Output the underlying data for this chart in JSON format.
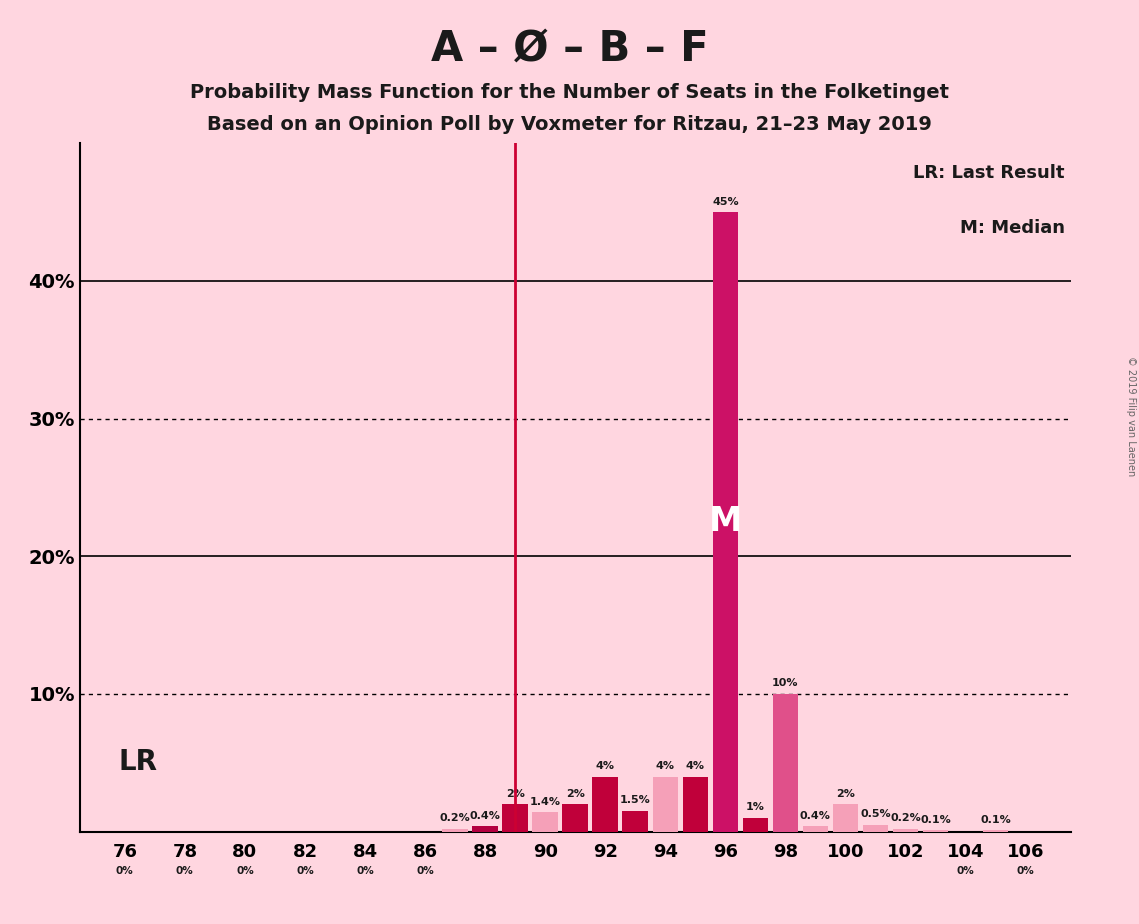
{
  "title_main": "A – Ø – B – F",
  "subtitle1": "Probability Mass Function for the Number of Seats in the Folketinget",
  "subtitle2": "Based on an Opinion Poll by Voxmeter for Ritzau, 21–23 May 2019",
  "copyright": "© 2019 Filip van Laenen",
  "seats": [
    76,
    78,
    80,
    82,
    84,
    86,
    87,
    88,
    89,
    90,
    91,
    92,
    93,
    94,
    95,
    96,
    97,
    98,
    99,
    100,
    101,
    102,
    103,
    104,
    105,
    106
  ],
  "probabilities": [
    0.0,
    0.0,
    0.0,
    0.0,
    0.0,
    0.0,
    0.2,
    0.4,
    2.0,
    1.4,
    2.0,
    4.0,
    1.5,
    4.0,
    4.0,
    45.0,
    1.0,
    10.0,
    0.4,
    2.0,
    0.5,
    0.2,
    0.1,
    0.0,
    0.1,
    0.0
  ],
  "bar_colors": [
    "#f4a0b5",
    "#f4a0b5",
    "#f4a0b5",
    "#f4a0b5",
    "#f4a0b5",
    "#f4a0b5",
    "#f4a0b5",
    "#cc0044",
    "#cc0044",
    "#f4a0b5",
    "#cc0044",
    "#cc0044",
    "#cc0044",
    "#f08098",
    "#cc0044",
    "#cc0044",
    "#cc0044",
    "#e8609a",
    "#f4a0b5",
    "#f4a0b5",
    "#f08098",
    "#f4a0b5",
    "#f4a0b5",
    "#f4a0b5",
    "#f4a0b5",
    "#f4a0b5"
  ],
  "lr_seat": 89,
  "median_seat": 96,
  "background_color": "#ffd6e0",
  "ylim": [
    0,
    50
  ],
  "legend_lr": "LR: Last Result",
  "legend_m": "M: Median",
  "lr_label": "LR",
  "m_label": "M"
}
